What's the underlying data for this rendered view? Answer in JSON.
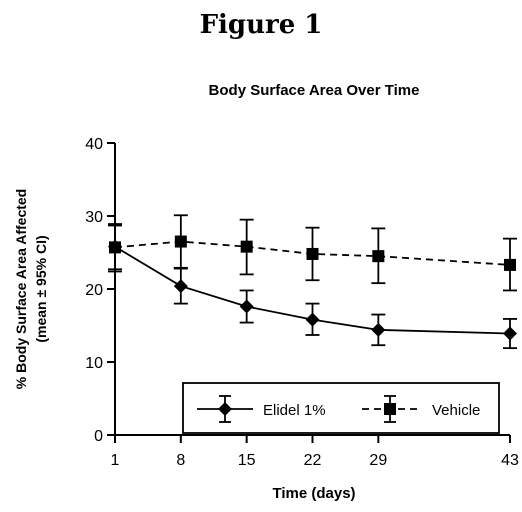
{
  "figure_label": "Figure 1",
  "chart_data": {
    "type": "line",
    "title": "Body Surface Area Over Time",
    "xlabel": "Time (days)",
    "ylabel_line1": "% Body Surface Area Affected",
    "ylabel_line2": "(mean ± 95% CI)",
    "x": [
      1,
      8,
      15,
      22,
      29,
      43
    ],
    "x_ticks": [
      1,
      8,
      15,
      22,
      29,
      43
    ],
    "xlim": [
      1,
      43
    ],
    "y_ticks": [
      0,
      10,
      20,
      30,
      40
    ],
    "ylim": [
      0,
      40
    ],
    "grid": false,
    "legend_position": "bottom-right",
    "series": [
      {
        "name": "Elidel 1%",
        "marker": "diamond",
        "line_style": "solid",
        "color": "#000000",
        "values": [
          25.8,
          20.4,
          17.6,
          15.8,
          14.4,
          13.9
        ],
        "ci_low": [
          22.4,
          18.0,
          15.4,
          13.7,
          12.3,
          11.9
        ],
        "ci_high": [
          28.9,
          22.9,
          19.8,
          18.0,
          16.5,
          15.9
        ]
      },
      {
        "name": "Vehicle",
        "marker": "square",
        "line_style": "dashed",
        "color": "#000000",
        "values": [
          25.7,
          26.5,
          25.8,
          24.8,
          24.5,
          23.3
        ],
        "ci_low": [
          22.7,
          22.8,
          22.0,
          21.2,
          20.8,
          19.8
        ],
        "ci_high": [
          28.7,
          30.1,
          29.5,
          28.4,
          28.3,
          26.9
        ]
      }
    ]
  }
}
